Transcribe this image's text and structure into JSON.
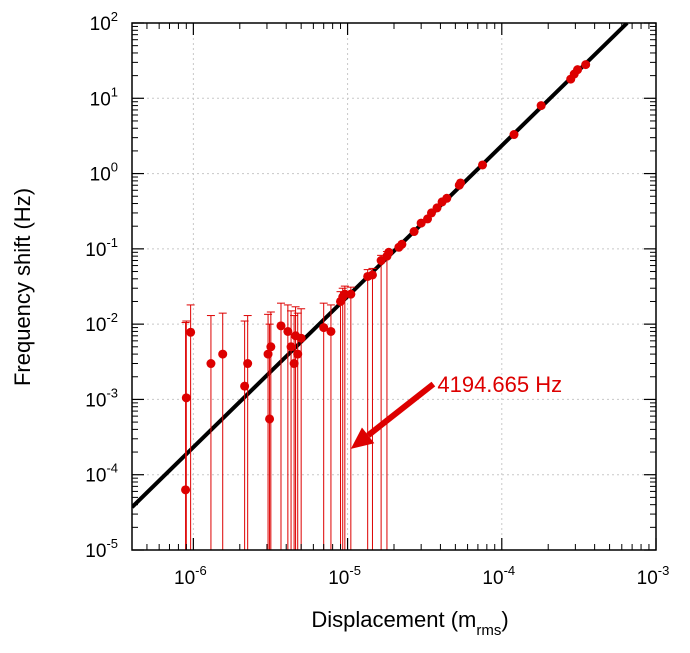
{
  "chart_data": {
    "type": "scatter",
    "title": "",
    "xlabel": "Displacement (m",
    "xlabel_sub": "rms",
    "xlabel_close": ")",
    "ylabel": "Frequency shift (Hz)",
    "x_scale": "log",
    "y_scale": "log",
    "xlim": [
      4e-07,
      0.001
    ],
    "ylim": [
      1e-05,
      100
    ],
    "grid": true,
    "x_ticks": [
      {
        "base": "10",
        "exp": "-6",
        "value": 1e-06
      },
      {
        "base": "10",
        "exp": "-5",
        "value": 1e-05
      },
      {
        "base": "10",
        "exp": "-4",
        "value": 0.0001
      },
      {
        "base": "10",
        "exp": "-3",
        "value": 0.001
      }
    ],
    "y_ticks": [
      {
        "base": "10",
        "exp": "-5",
        "value": 1e-05
      },
      {
        "base": "10",
        "exp": "-4",
        "value": 0.0001
      },
      {
        "base": "10",
        "exp": "-3",
        "value": 0.001
      },
      {
        "base": "10",
        "exp": "-2",
        "value": 0.01
      },
      {
        "base": "10",
        "exp": "-1",
        "value": 0.1
      },
      {
        "base": "10",
        "exp": "0",
        "value": 1
      },
      {
        "base": "10",
        "exp": "1",
        "value": 10
      },
      {
        "base": "10",
        "exp": "2",
        "value": 100
      }
    ],
    "fit_line": {
      "color": "#000000",
      "points": [
        [
          4e-07,
          3.7e-05
        ],
        [
          0.00065,
          100
        ]
      ]
    },
    "series": [
      {
        "color": "#dd0000",
        "points": [
          {
            "x": 8.9e-07,
            "y": 6.3e-05,
            "yerr_hi": 0.0105
          },
          {
            "x": 9e-07,
            "y": 0.00105,
            "yerr_hi": 0.011
          },
          {
            "x": 9.6e-07,
            "y": 0.0078,
            "yerr_hi": 0.018
          },
          {
            "x": 1.3e-06,
            "y": 0.003,
            "yerr_hi": 0.013
          },
          {
            "x": 1.55e-06,
            "y": 0.004,
            "yerr_hi": 0.014
          },
          {
            "x": 2.15e-06,
            "y": 0.0015,
            "yerr_hi": 0.011
          },
          {
            "x": 2.25e-06,
            "y": 0.003,
            "yerr_hi": 0.013
          },
          {
            "x": 3.05e-06,
            "y": 0.004,
            "yerr_hi": 0.0135
          },
          {
            "x": 3.12e-06,
            "y": 0.00055,
            "yerr_hi": 0.01
          },
          {
            "x": 3.18e-06,
            "y": 0.005,
            "yerr_hi": 0.0145
          },
          {
            "x": 3.7e-06,
            "y": 0.0095,
            "yerr_hi": 0.019
          },
          {
            "x": 4.1e-06,
            "y": 0.008,
            "yerr_hi": 0.018
          },
          {
            "x": 4.3e-06,
            "y": 0.005,
            "yerr_hi": 0.015
          },
          {
            "x": 4.5e-06,
            "y": 0.003,
            "yerr_hi": 0.013
          },
          {
            "x": 4.6e-06,
            "y": 0.007,
            "yerr_hi": 0.017
          },
          {
            "x": 4.75e-06,
            "y": 0.004,
            "yerr_hi": 0.014
          },
          {
            "x": 5e-06,
            "y": 0.0065,
            "yerr_hi": 0.016
          },
          {
            "x": 7e-06,
            "y": 0.009,
            "yerr_hi": 0.019
          },
          {
            "x": 7.8e-06,
            "y": 0.008,
            "yerr_hi": 0.018
          },
          {
            "x": 9e-06,
            "y": 0.02,
            "yerr_hi": 0.027
          },
          {
            "x": 9.3e-06,
            "y": 0.023,
            "yerr_hi": 0.03
          },
          {
            "x": 9.6e-06,
            "y": 0.025,
            "yerr_hi": 0.032
          },
          {
            "x": 1.05e-05,
            "y": 0.025,
            "yerr_hi": 0.031
          },
          {
            "x": 1.35e-05,
            "y": 0.043,
            "yerr_hi": 0.053
          },
          {
            "x": 1.45e-05,
            "y": 0.045,
            "yerr_hi": 0.055
          },
          {
            "x": 1.65e-05,
            "y": 0.07,
            "yerr_hi": 0.082
          },
          {
            "x": 1.8e-05,
            "y": 0.08,
            "yerr_hi": 0.092
          },
          {
            "x": 1.85e-05,
            "y": 0.09
          },
          {
            "x": 2.15e-05,
            "y": 0.105
          },
          {
            "x": 2.25e-05,
            "y": 0.115
          },
          {
            "x": 2.7e-05,
            "y": 0.17
          },
          {
            "x": 3e-05,
            "y": 0.22
          },
          {
            "x": 3.3e-05,
            "y": 0.25
          },
          {
            "x": 3.5e-05,
            "y": 0.3
          },
          {
            "x": 3.8e-05,
            "y": 0.35
          },
          {
            "x": 4.1e-05,
            "y": 0.42
          },
          {
            "x": 4.4e-05,
            "y": 0.47
          },
          {
            "x": 5.3e-05,
            "y": 0.7
          },
          {
            "x": 5.4e-05,
            "y": 0.75
          },
          {
            "x": 7.5e-05,
            "y": 1.3
          },
          {
            "x": 0.00012,
            "y": 3.3
          },
          {
            "x": 0.00018,
            "y": 8.0
          },
          {
            "x": 0.00028,
            "y": 18
          },
          {
            "x": 0.000295,
            "y": 21
          },
          {
            "x": 0.00031,
            "y": 24
          },
          {
            "x": 0.00035,
            "y": 28
          }
        ]
      }
    ],
    "annotation": {
      "text": "4194.665 Hz",
      "color": "#dd0000",
      "arrow_from": [
        3.6e-05,
        0.0016
      ],
      "arrow_to": [
        1.05e-05,
        0.00022
      ]
    }
  }
}
